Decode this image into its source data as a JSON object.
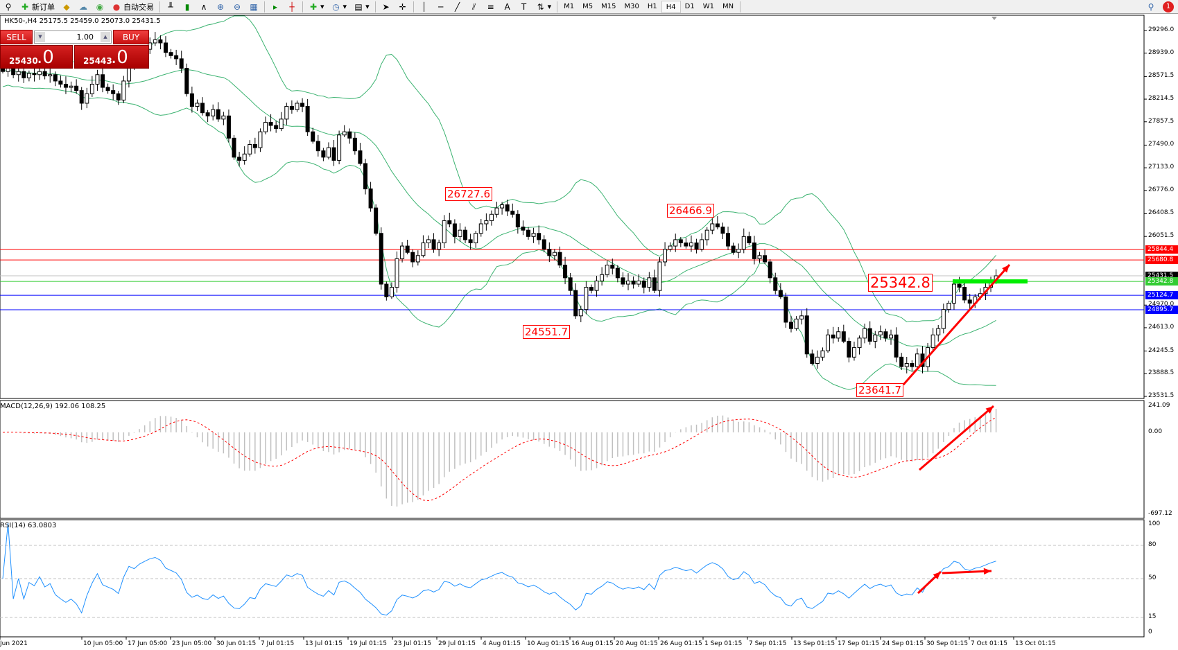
{
  "toolbar": {
    "new_order": "新订单",
    "auto_trading": "自动交易",
    "timeframes": [
      "M1",
      "M5",
      "M15",
      "M30",
      "H1",
      "H4",
      "D1",
      "W1",
      "MN"
    ],
    "active_timeframe": "H4",
    "alert_count": "1"
  },
  "chart": {
    "info_line": "HK50-,H4  25175.5 25459.0 25073.0 25431.5",
    "symbol": "HK50-",
    "timeframe": "H4"
  },
  "one_click": {
    "sell_label": "SELL",
    "buy_label": "BUY",
    "lot": "1.00",
    "sell_price_main": "25430",
    "sell_price_big": ".0",
    "buy_price_main": "25443",
    "buy_price_big": ".0"
  },
  "price_axis": [
    "29296.0",
    "28939.0",
    "28571.5",
    "28214.5",
    "27857.5",
    "27490.0",
    "27133.0",
    "26776.0",
    "26408.5",
    "26051.5",
    "24970.0",
    "24613.0",
    "24245.5",
    "23888.5",
    "23531.5"
  ],
  "horizontal_lines": [
    {
      "label": "25844.4",
      "price": 25844.4,
      "color": "#ff0000"
    },
    {
      "label": "25680.8",
      "price": 25680.8,
      "color": "#ff0000"
    },
    {
      "label": "25431.5",
      "price": 25431.5,
      "color": "#000000",
      "line_color": "#c0c0c0"
    },
    {
      "label": "25342.8",
      "price": 25342.8,
      "color": "#33cc33"
    },
    {
      "label": "25124.7",
      "price": 25124.7,
      "color": "#0000ff"
    },
    {
      "label": "24895.7",
      "price": 24895.7,
      "color": "#0000ff"
    }
  ],
  "annotations": [
    {
      "text": "26727.6"
    },
    {
      "text": "26466.9"
    },
    {
      "text": "24551.7"
    },
    {
      "text": "23641.7"
    },
    {
      "text": "25342.8"
    }
  ],
  "macd": {
    "label": "MACD(12,26,9) 192.06 108.25",
    "axis": [
      "241.09",
      "0.00",
      "-697.12"
    ]
  },
  "rsi": {
    "label": "RSI(14) 63.0803",
    "axis": [
      "100",
      "80",
      "50",
      "15",
      "0"
    ]
  },
  "time_axis": [
    "Jun 2021",
    "10 Jun 05:00",
    "17 Jun 05:00",
    "23 Jun 05:00",
    "30 Jun 01:15",
    "7 Jul 01:15",
    "13 Jul 01:15",
    "19 Jul 01:15",
    "23 Jul 01:15",
    "29 Jul 01:15",
    "4 Aug 01:15",
    "10 Aug 01:15",
    "16 Aug 01:15",
    "20 Aug 01:15",
    "26 Aug 01:15",
    "1 Sep 01:15",
    "7 Sep 01:15",
    "13 Sep 01:15",
    "17 Sep 01:15",
    "24 Sep 01:15",
    "30 Sep 01:15",
    "7 Oct 01:15",
    "13 Oct 01:15"
  ],
  "chart_data": {
    "type": "candlestick",
    "ylim": [
      23531.5,
      29296.0
    ],
    "closes": [
      28650,
      28700,
      28600,
      28650,
      28550,
      28620,
      28600,
      28650,
      28580,
      28600,
      28500,
      28450,
      28400,
      28420,
      28350,
      28150,
      28300,
      28450,
      28600,
      28400,
      28350,
      28300,
      28200,
      28500,
      28800,
      28750,
      28900,
      29000,
      29100,
      29150,
      29100,
      28950,
      28900,
      28850,
      28700,
      28300,
      28100,
      28150,
      28000,
      27950,
      28050,
      27900,
      27950,
      27600,
      27300,
      27250,
      27350,
      27500,
      27450,
      27700,
      27850,
      27800,
      27750,
      27900,
      28100,
      28050,
      28150,
      28100,
      27700,
      27550,
      27400,
      27300,
      27450,
      27250,
      27650,
      27700,
      27600,
      27400,
      27200,
      26800,
      26500,
      26100,
      25300,
      25100,
      25250,
      25700,
      25900,
      25800,
      25650,
      25750,
      25950,
      26000,
      25850,
      25950,
      26300,
      26250,
      26050,
      26150,
      26000,
      25950,
      26100,
      26250,
      26300,
      26400,
      26500,
      26550,
      26450,
      26400,
      26200,
      26150,
      26050,
      26100,
      26000,
      25850,
      25750,
      25800,
      25600,
      25400,
      25200,
      24800,
      24900,
      25250,
      25200,
      25350,
      25450,
      25600,
      25550,
      25400,
      25300,
      25350,
      25300,
      25350,
      25250,
      25400,
      25200,
      25650,
      25850,
      25900,
      26000,
      25950,
      25900,
      25950,
      25850,
      26000,
      26150,
      26250,
      26200,
      26100,
      25900,
      25800,
      25850,
      26050,
      25950,
      25700,
      25750,
      25650,
      25400,
      25200,
      25100,
      24700,
      24600,
      24750,
      24800,
      24200,
      24050,
      24150,
      24250,
      24500,
      24450,
      24550,
      24400,
      24150,
      24300,
      24450,
      24600,
      24400,
      24500,
      24550,
      24450,
      24500,
      24150,
      24000,
      24050,
      24000,
      24200,
      24000,
      24300,
      24500,
      24600,
      24900,
      25000,
      25300,
      25250,
      25050,
      25000,
      25100,
      25150,
      25250,
      25350,
      25431
    ],
    "indicators": [
      "Bollinger Bands",
      "MACD(12,26,9)",
      "RSI(14)"
    ],
    "colors": {
      "bands": "#3cb371",
      "macd_hist": "#c0c0c0",
      "macd_signal": "#ff0000",
      "rsi": "#1e90ff",
      "arrows": "#ff0000",
      "support_bar": "#00ee00"
    }
  }
}
